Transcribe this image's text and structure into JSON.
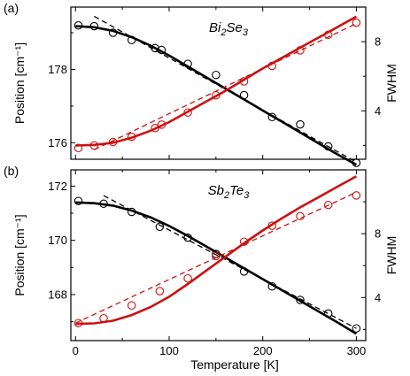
{
  "x_label": "Temperature [K]",
  "x_ticks": [
    0,
    100,
    200,
    300
  ],
  "xlim": [
    -5,
    310
  ],
  "colors": {
    "black_series": "#000000",
    "red_series": "#cc1111"
  },
  "chart_data": [
    {
      "type": "scatter",
      "panel_label": "(a)",
      "annotation": {
        "base1": "Bi",
        "sub1": "2",
        "base2": "Se",
        "sub2": "3"
      },
      "ylabel_left": "Position [cm⁻¹]",
      "ylabel_right": "FWHM",
      "ylim_left": [
        175.55,
        179.7
      ],
      "yticks_left": [
        176,
        178
      ],
      "ylim_right": [
        1.2,
        10.0
      ],
      "yticks_right": [
        4,
        8
      ],
      "series": [
        {
          "axis": "left",
          "color": "#000000",
          "marker": "open-circle",
          "points": [
            [
              3,
              179.2
            ],
            [
              20,
              179.18
            ],
            [
              40,
              179.0
            ],
            [
              60,
              178.8
            ],
            [
              85,
              178.58
            ],
            [
              92,
              178.53
            ],
            [
              120,
              178.15
            ],
            [
              150,
              177.85
            ],
            [
              180,
              177.3
            ],
            [
              210,
              176.7
            ],
            [
              240,
              176.5
            ],
            [
              270,
              175.9
            ],
            [
              300,
              175.45
            ]
          ],
          "fit_solid": [
            [
              0,
              179.18
            ],
            [
              20,
              179.15
            ],
            [
              40,
              179.05
            ],
            [
              60,
              178.88
            ],
            [
              80,
              178.65
            ],
            [
              100,
              178.38
            ],
            [
              120,
              178.08
            ],
            [
              140,
              177.78
            ],
            [
              160,
              177.48
            ],
            [
              180,
              177.18
            ],
            [
              200,
              176.88
            ],
            [
              220,
              176.58
            ],
            [
              240,
              176.28
            ],
            [
              260,
              175.98
            ],
            [
              280,
              175.68
            ],
            [
              300,
              175.4
            ]
          ],
          "fit_dashed": [
            [
              20,
              179.45
            ],
            [
              300,
              175.47
            ]
          ]
        },
        {
          "axis": "right",
          "color": "#cc1111",
          "marker": "open-circle",
          "points": [
            [
              3,
              1.85
            ],
            [
              20,
              2.0
            ],
            [
              40,
              2.2
            ],
            [
              60,
              2.5
            ],
            [
              85,
              3.0
            ],
            [
              92,
              3.2
            ],
            [
              120,
              3.9
            ],
            [
              150,
              4.9
            ],
            [
              180,
              5.7
            ],
            [
              210,
              6.6
            ],
            [
              240,
              7.5
            ],
            [
              270,
              8.4
            ],
            [
              300,
              9.1
            ]
          ],
          "fit_solid": [
            [
              0,
              2.0
            ],
            [
              20,
              2.03
            ],
            [
              40,
              2.15
            ],
            [
              60,
              2.45
            ],
            [
              80,
              2.85
            ],
            [
              100,
              3.35
            ],
            [
              120,
              3.95
            ],
            [
              140,
              4.55
            ],
            [
              160,
              5.15
            ],
            [
              180,
              5.8
            ],
            [
              200,
              6.45
            ],
            [
              220,
              7.05
            ],
            [
              240,
              7.65
            ],
            [
              260,
              8.25
            ],
            [
              280,
              8.85
            ],
            [
              300,
              9.45
            ]
          ],
          "fit_dashed": [
            [
              20,
              1.75
            ],
            [
              300,
              9.05
            ]
          ]
        }
      ]
    },
    {
      "type": "scatter",
      "panel_label": "(b)",
      "annotation": {
        "base1": "Sb",
        "sub1": "2",
        "base2": "Te",
        "sub2": "3"
      },
      "ylabel_left": "Position [cm⁻¹]",
      "ylabel_right": "FWHM",
      "ylim_left": [
        166.3,
        172.6
      ],
      "yticks_left": [
        168,
        170,
        172
      ],
      "ylim_right": [
        1.3,
        12.0
      ],
      "yticks_right": [
        4,
        8
      ],
      "series": [
        {
          "axis": "left",
          "color": "#000000",
          "marker": "open-circle",
          "points": [
            [
              3,
              171.45
            ],
            [
              30,
              171.35
            ],
            [
              60,
              171.05
            ],
            [
              90,
              170.5
            ],
            [
              120,
              170.1
            ],
            [
              150,
              169.5
            ],
            [
              180,
              168.85
            ],
            [
              210,
              168.3
            ],
            [
              240,
              167.8
            ],
            [
              270,
              167.3
            ],
            [
              300,
              166.75
            ]
          ],
          "fit_solid": [
            [
              0,
              171.4
            ],
            [
              20,
              171.37
            ],
            [
              40,
              171.28
            ],
            [
              60,
              171.1
            ],
            [
              80,
              170.85
            ],
            [
              100,
              170.53
            ],
            [
              120,
              170.16
            ],
            [
              140,
              169.77
            ],
            [
              160,
              169.37
            ],
            [
              180,
              168.97
            ],
            [
              200,
              168.57
            ],
            [
              220,
              168.17
            ],
            [
              240,
              167.77
            ],
            [
              260,
              167.37
            ],
            [
              280,
              166.97
            ],
            [
              300,
              166.55
            ]
          ],
          "fit_dashed": [
            [
              30,
              171.65
            ],
            [
              300,
              166.75
            ]
          ]
        },
        {
          "axis": "right",
          "color": "#cc1111",
          "marker": "open-circle",
          "points": [
            [
              3,
              2.4
            ],
            [
              30,
              2.7
            ],
            [
              60,
              3.5
            ],
            [
              90,
              4.4
            ],
            [
              120,
              5.2
            ],
            [
              150,
              6.6
            ],
            [
              180,
              7.5
            ],
            [
              210,
              8.5
            ],
            [
              240,
              9.1
            ],
            [
              270,
              9.8
            ],
            [
              300,
              10.4
            ]
          ],
          "fit_solid": [
            [
              0,
              2.35
            ],
            [
              20,
              2.38
            ],
            [
              40,
              2.55
            ],
            [
              60,
              2.9
            ],
            [
              80,
              3.4
            ],
            [
              100,
              4.05
            ],
            [
              120,
              4.85
            ],
            [
              140,
              5.7
            ],
            [
              160,
              6.55
            ],
            [
              180,
              7.4
            ],
            [
              200,
              8.2
            ],
            [
              220,
              8.95
            ],
            [
              240,
              9.65
            ],
            [
              260,
              10.3
            ],
            [
              280,
              10.95
            ],
            [
              300,
              11.6
            ]
          ],
          "fit_dashed": [
            [
              0,
              2.4
            ],
            [
              300,
              10.6
            ]
          ]
        }
      ]
    }
  ]
}
